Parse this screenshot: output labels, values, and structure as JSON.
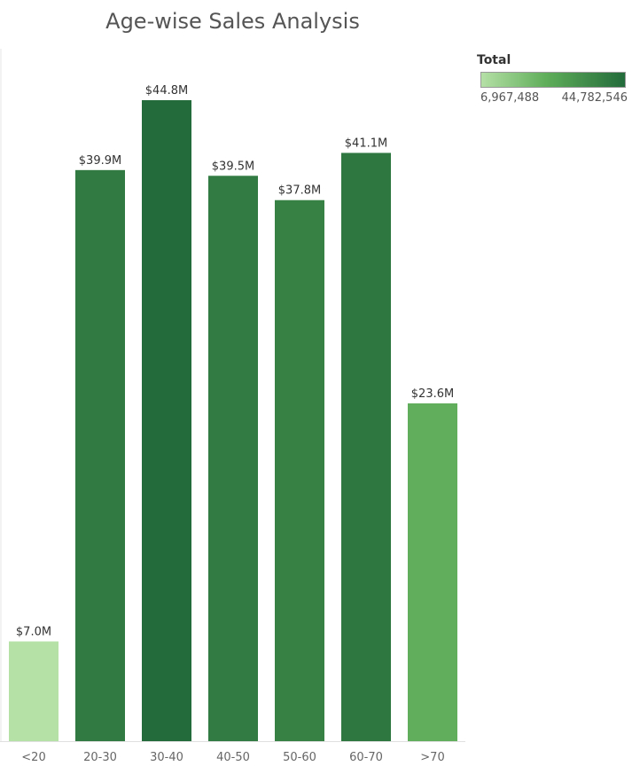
{
  "chart_data": {
    "type": "bar",
    "title": "Age-wise Sales Analysis",
    "categories": [
      "<20",
      "20-30",
      "30-40",
      "40-50",
      "50-60",
      "60-70",
      ">70"
    ],
    "values": [
      6967488,
      39900000,
      44782546,
      39500000,
      37800000,
      41100000,
      23600000
    ],
    "data_labels": [
      "$7.0M",
      "$39.9M",
      "$44.8M",
      "$39.5M",
      "$37.8M",
      "$41.1M",
      "$23.6M"
    ],
    "ylim": [
      0,
      44782546
    ],
    "legend": {
      "title": "Total",
      "min_label": "6,967,488",
      "max_label": "44,782,546",
      "placement": "top-right",
      "color_low": "#b5e0a6",
      "color_high": "#236b3b"
    },
    "grid": false
  }
}
